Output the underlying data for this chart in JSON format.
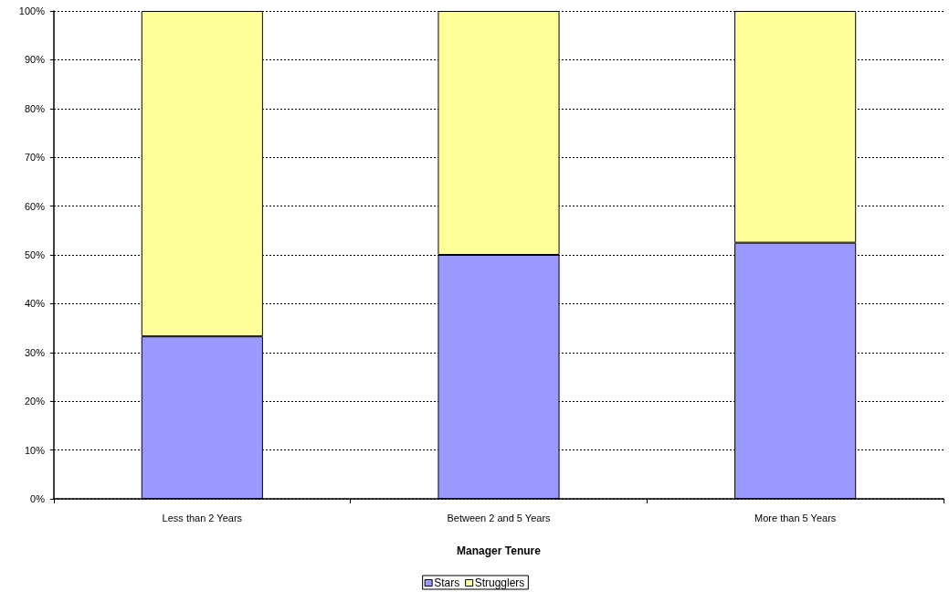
{
  "chart_data": {
    "type": "bar",
    "stacked": true,
    "xlabel": "Manager Tenure",
    "categories": [
      "Less than 2 Years",
      "Between 2 and 5 Years",
      "More than 5 Years"
    ],
    "series": [
      {
        "name": "Stars",
        "color": "#9999ff",
        "values": [
          33.3,
          50,
          52.5
        ]
      },
      {
        "name": "Strugglers",
        "color": "#ffff99",
        "values": [
          66.7,
          50,
          47.5
        ]
      }
    ],
    "ylim": [
      0,
      100
    ],
    "yticks": [
      {
        "value": 0,
        "label": "0%"
      },
      {
        "value": 10,
        "label": "10%"
      },
      {
        "value": 20,
        "label": "20%"
      },
      {
        "value": 30,
        "label": "30%"
      },
      {
        "value": 40,
        "label": "40%"
      },
      {
        "value": 50,
        "label": "50%"
      },
      {
        "value": 60,
        "label": "60%"
      },
      {
        "value": 70,
        "label": "70%"
      },
      {
        "value": 80,
        "label": "80%"
      },
      {
        "value": 90,
        "label": "90%"
      },
      {
        "value": 100,
        "label": "100%"
      }
    ],
    "grid": "y",
    "legend": "bottom"
  }
}
